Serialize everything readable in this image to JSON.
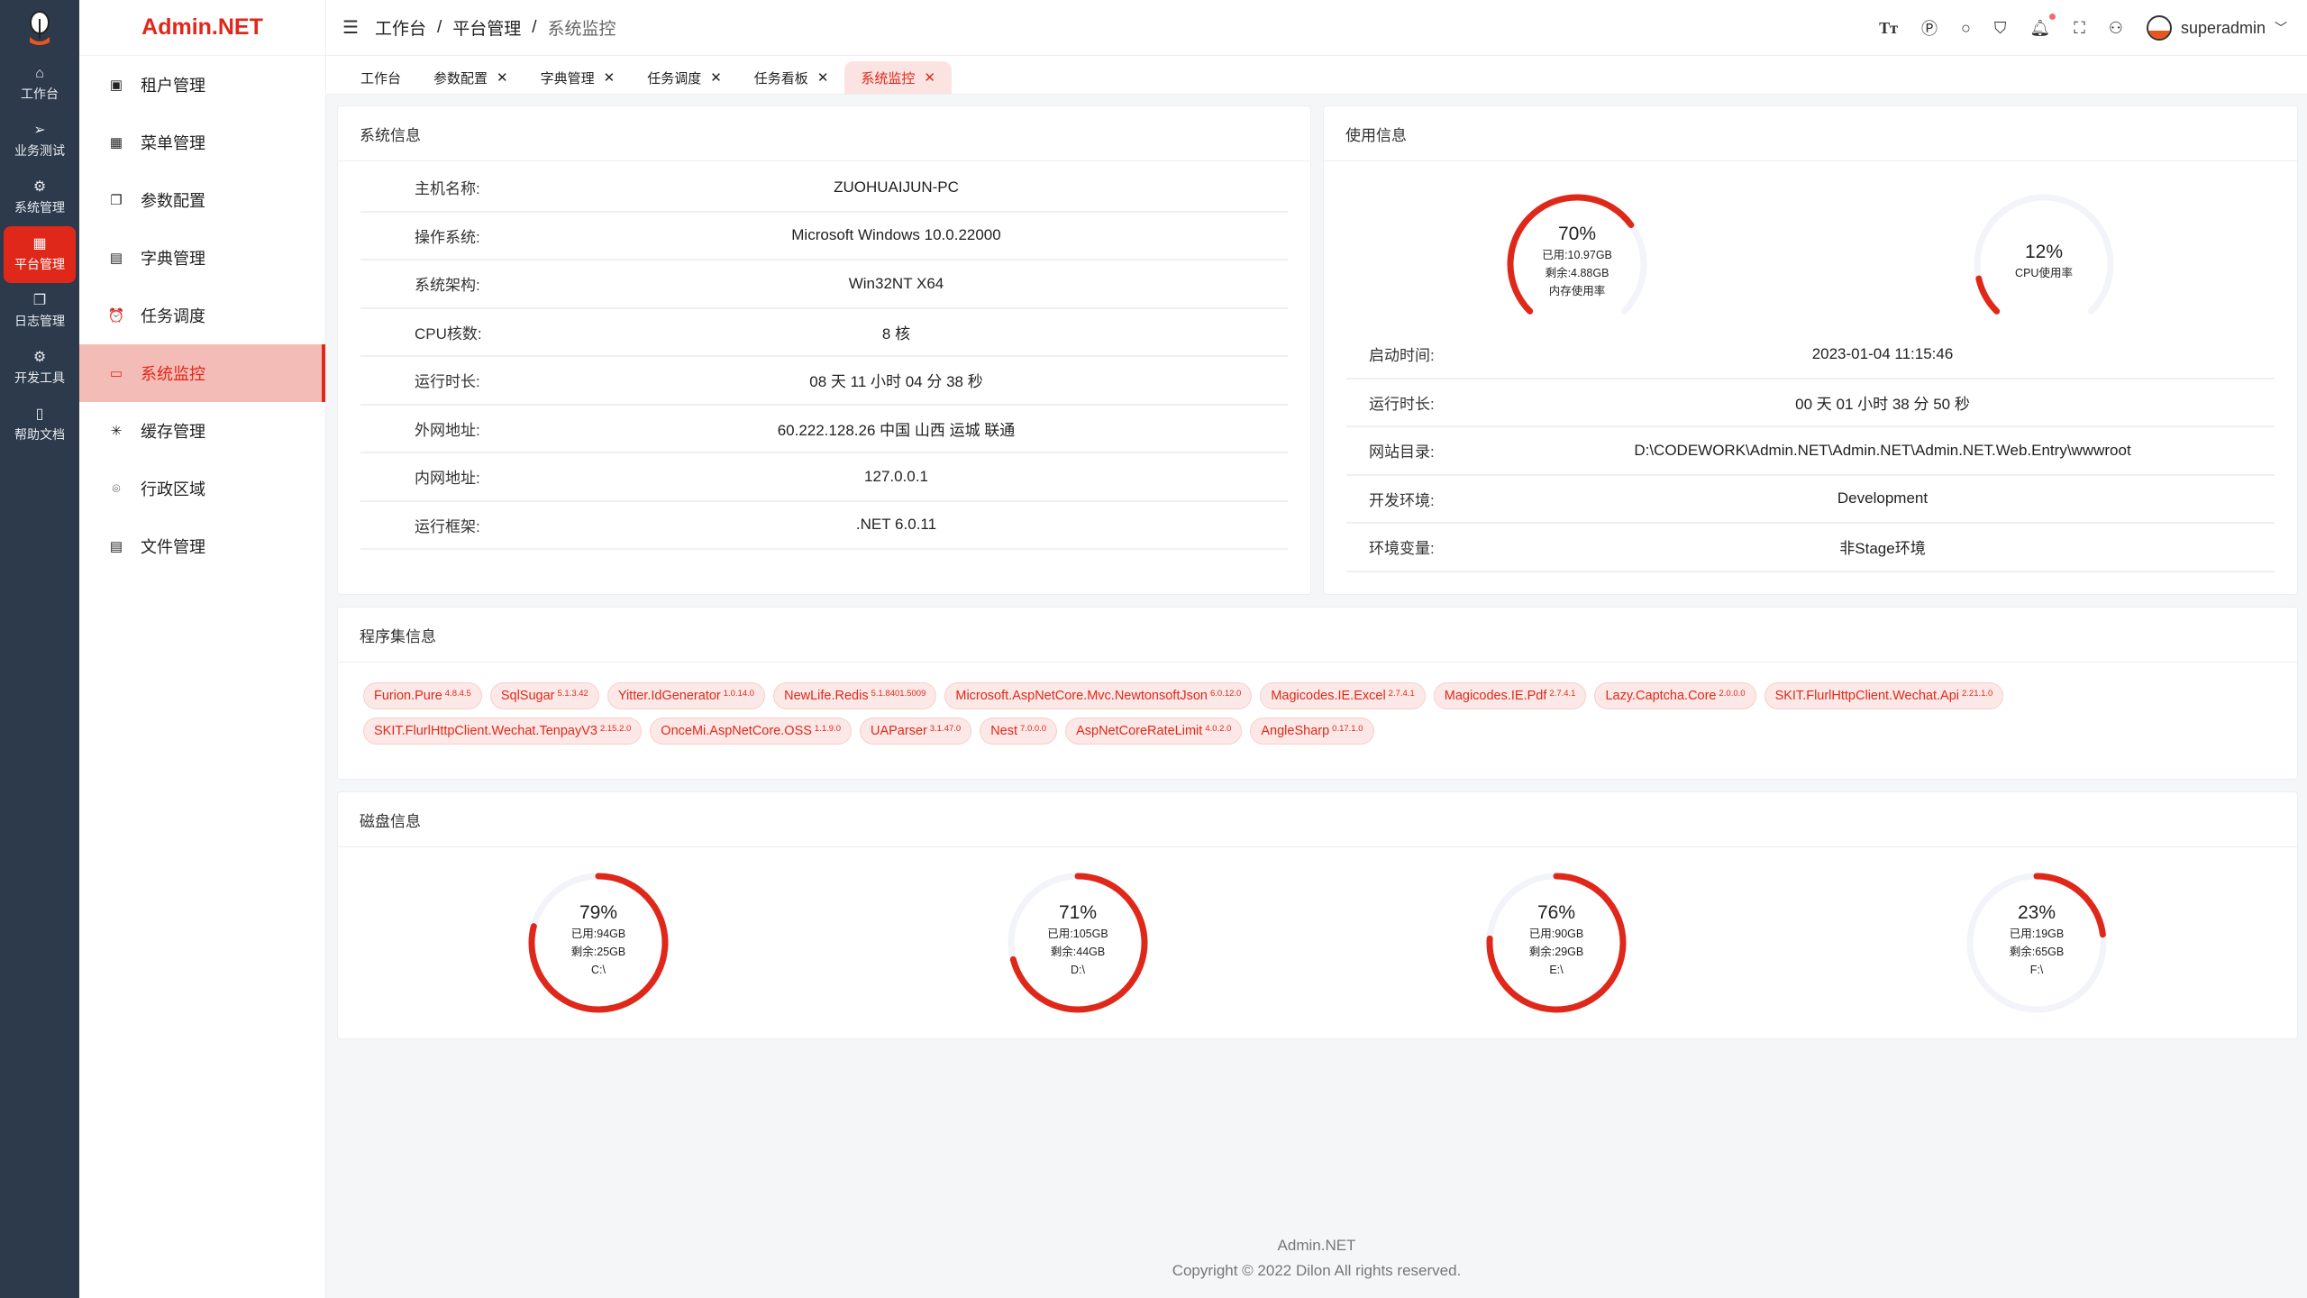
{
  "app": {
    "brand": "Admin.NET",
    "accent": "#e0281a"
  },
  "rail": {
    "items": [
      {
        "label": "工作台",
        "icon": "home-icon",
        "glyph": "⌂"
      },
      {
        "label": "业务测试",
        "icon": "send-icon",
        "glyph": "➢"
      },
      {
        "label": "系统管理",
        "icon": "gear-icon",
        "glyph": "⚙"
      },
      {
        "label": "平台管理",
        "icon": "grid-icon",
        "glyph": "▦",
        "active": true
      },
      {
        "label": "日志管理",
        "icon": "copy-icon",
        "glyph": "❐"
      },
      {
        "label": "开发工具",
        "icon": "chip-icon",
        "glyph": "⚙"
      },
      {
        "label": "帮助文档",
        "icon": "notebook-icon",
        "glyph": "▯"
      }
    ]
  },
  "menu": {
    "items": [
      {
        "label": "租户管理",
        "icon": "office-icon",
        "glyph": "▣"
      },
      {
        "label": "菜单管理",
        "icon": "grid-icon",
        "glyph": "▦"
      },
      {
        "label": "参数配置",
        "icon": "copy-icon",
        "glyph": "❐"
      },
      {
        "label": "字典管理",
        "icon": "book-icon",
        "glyph": "▤"
      },
      {
        "label": "任务调度",
        "icon": "alarm-icon",
        "glyph": "⏰"
      },
      {
        "label": "系统监控",
        "icon": "monitor-icon",
        "glyph": "▭",
        "active": true
      },
      {
        "label": "缓存管理",
        "icon": "loading-icon",
        "glyph": "✳"
      },
      {
        "label": "行政区域",
        "icon": "location-icon",
        "glyph": "⌾"
      },
      {
        "label": "文件管理",
        "icon": "document-icon",
        "glyph": "▤"
      }
    ]
  },
  "header": {
    "breadcrumb": [
      "工作台",
      "平台管理",
      "系统监控"
    ],
    "separator": "/",
    "username": "superadmin"
  },
  "tabs": [
    {
      "label": "工作台",
      "closable": false
    },
    {
      "label": "参数配置",
      "closable": true
    },
    {
      "label": "字典管理",
      "closable": true
    },
    {
      "label": "任务调度",
      "closable": true
    },
    {
      "label": "任务看板",
      "closable": true
    },
    {
      "label": "系统监控",
      "closable": true,
      "active": true
    }
  ],
  "close_glyph": "✕",
  "system": {
    "title": "系统信息",
    "rows": [
      {
        "k": "主机名称:",
        "v": "ZUOHUAIJUN-PC"
      },
      {
        "k": "操作系统:",
        "v": "Microsoft Windows 10.0.22000"
      },
      {
        "k": "系统架构:",
        "v": "Win32NT X64"
      },
      {
        "k": "CPU核数:",
        "v": "8 核"
      },
      {
        "k": "运行时长:",
        "v": "08 天 11 小时 04 分 38 秒"
      },
      {
        "k": "外网地址:",
        "v": "60.222.128.26 中国 山西 运城 联通"
      },
      {
        "k": "内网地址:",
        "v": "127.0.0.1"
      },
      {
        "k": "运行框架:",
        "v": ".NET 6.0.11"
      }
    ]
  },
  "usage": {
    "title": "使用信息",
    "memory": {
      "percent": 70,
      "used": "已用:10.97GB",
      "free": "剩余:4.88GB",
      "label": "内存使用率",
      "pct_text": "70%"
    },
    "cpu": {
      "percent": 12,
      "label": "CPU使用率",
      "pct_text": "12%"
    },
    "rows": [
      {
        "k": "启动时间:",
        "v": "2023-01-04 11:15:46"
      },
      {
        "k": "运行时长:",
        "v": "00 天 01 小时 38 分 50 秒"
      },
      {
        "k": "网站目录:",
        "v": "D:\\CODEWORK\\Admin.NET\\Admin.NET\\Admin.NET.Web.Entry\\wwwroot"
      },
      {
        "k": "开发环境:",
        "v": "Development"
      },
      {
        "k": "环境变量:",
        "v": "非Stage环境"
      }
    ]
  },
  "assemblies": {
    "title": "程序集信息",
    "items": [
      {
        "name": "Furion.Pure",
        "ver": "4.8.4.5"
      },
      {
        "name": "SqlSugar",
        "ver": "5.1.3.42"
      },
      {
        "name": "Yitter.IdGenerator",
        "ver": "1.0.14.0"
      },
      {
        "name": "NewLife.Redis",
        "ver": "5.1.8401.5009"
      },
      {
        "name": "Microsoft.AspNetCore.Mvc.NewtonsoftJson",
        "ver": "6.0.12.0"
      },
      {
        "name": "Magicodes.IE.Excel",
        "ver": "2.7.4.1"
      },
      {
        "name": "Magicodes.IE.Pdf",
        "ver": "2.7.4.1"
      },
      {
        "name": "Lazy.Captcha.Core",
        "ver": "2.0.0.0"
      },
      {
        "name": "SKIT.FlurlHttpClient.Wechat.Api",
        "ver": "2.21.1.0"
      },
      {
        "name": "SKIT.FlurlHttpClient.Wechat.TenpayV3",
        "ver": "2.15.2.0"
      },
      {
        "name": "OnceMi.AspNetCore.OSS",
        "ver": "1.1.9.0"
      },
      {
        "name": "UAParser",
        "ver": "3.1.47.0"
      },
      {
        "name": "Nest",
        "ver": "7.0.0.0"
      },
      {
        "name": "AspNetCoreRateLimit",
        "ver": "4.0.2.0"
      },
      {
        "name": "AngleSharp",
        "ver": "0.17.1.0"
      }
    ]
  },
  "disks": {
    "title": "磁盘信息",
    "items": [
      {
        "percent": 79,
        "pct_text": "79%",
        "used": "已用:94GB",
        "free": "剩余:25GB",
        "name": "C:\\"
      },
      {
        "percent": 71,
        "pct_text": "71%",
        "used": "已用:105GB",
        "free": "剩余:44GB",
        "name": "D:\\"
      },
      {
        "percent": 76,
        "pct_text": "76%",
        "used": "已用:90GB",
        "free": "剩余:29GB",
        "name": "E:\\"
      },
      {
        "percent": 23,
        "pct_text": "23%",
        "used": "已用:19GB",
        "free": "剩余:65GB",
        "name": "F:\\"
      }
    ]
  },
  "footer": {
    "name": "Admin.NET",
    "copyright": "Copyright © 2022 Dilon All rights reserved."
  }
}
